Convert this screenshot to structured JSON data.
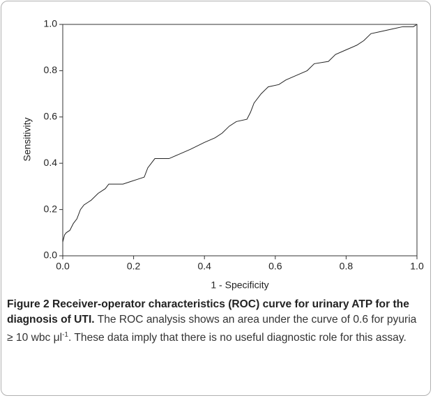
{
  "chart_data": {
    "type": "line",
    "x_label": "1 - Specificity",
    "y_label": "Sensitivity",
    "xlim": [
      0,
      1
    ],
    "ylim": [
      0,
      1
    ],
    "xticks": [
      {
        "value": 0,
        "label": "0.0"
      },
      0.2,
      0.4,
      0.6,
      0.8,
      {
        "value": 1,
        "label": "1.0"
      }
    ],
    "yticks": [
      {
        "value": 0,
        "label": "0.0"
      },
      0.2,
      0.4,
      0.6,
      0.8,
      {
        "value": 1,
        "label": "1.0"
      }
    ],
    "series": [
      {
        "color": "#222222",
        "x": [
          0,
          0.005,
          0.01,
          0.02,
          0.03,
          0.04,
          0.05,
          0.06,
          0.08,
          0.1,
          0.12,
          0.13,
          0.17,
          0.19,
          0.21,
          0.23,
          0.24,
          0.25,
          0.26,
          0.3,
          0.33,
          0.36,
          0.4,
          0.43,
          0.45,
          0.47,
          0.49,
          0.52,
          0.53,
          0.54,
          0.56,
          0.58,
          0.61,
          0.63,
          0.66,
          0.69,
          0.71,
          0.75,
          0.77,
          0.8,
          0.83,
          0.85,
          0.87,
          0.9,
          0.93,
          0.96,
          0.99,
          1
        ],
        "values": [
          0.06,
          0.09,
          0.1,
          0.11,
          0.14,
          0.16,
          0.2,
          0.22,
          0.24,
          0.27,
          0.29,
          0.31,
          0.31,
          0.32,
          0.33,
          0.34,
          0.38,
          0.4,
          0.42,
          0.42,
          0.44,
          0.46,
          0.49,
          0.51,
          0.53,
          0.56,
          0.58,
          0.59,
          0.62,
          0.66,
          0.7,
          0.73,
          0.74,
          0.76,
          0.78,
          0.8,
          0.83,
          0.84,
          0.87,
          0.89,
          0.91,
          0.93,
          0.96,
          0.97,
          0.98,
          0.99,
          0.99,
          1
        ]
      }
    ]
  },
  "caption": {
    "label": "Figure 2",
    "title": "Receiver-operator characteristics (ROC) curve for urinary ATP for the diagnosis of UTI.",
    "text_before": "The ROC analysis shows an area under the curve of 0.6 for pyuria ≥ 10 wbc μl",
    "superscript": "-1",
    "text_after": ". These data imply that there is no useful diagnostic role for this assay."
  }
}
